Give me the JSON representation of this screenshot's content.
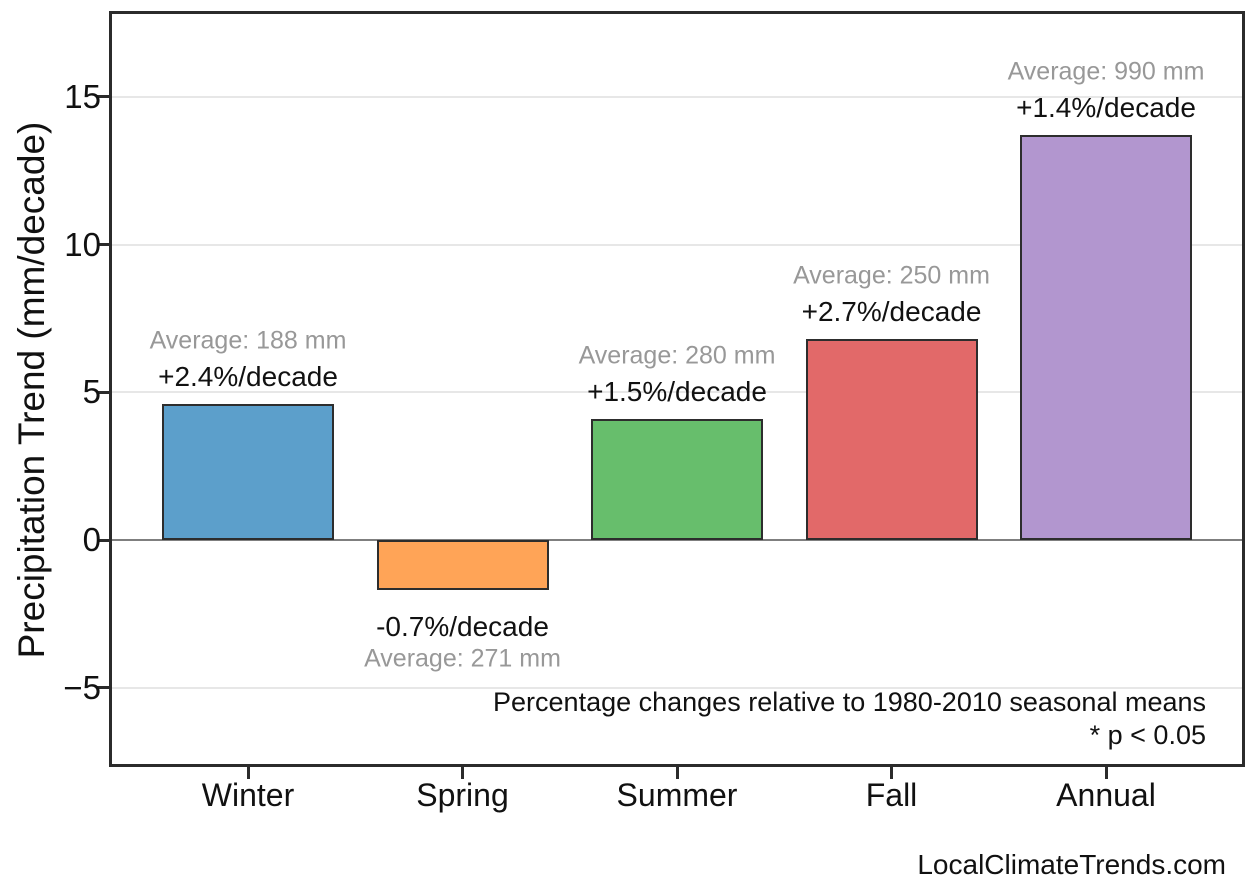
{
  "chart_data": {
    "type": "bar",
    "title": "",
    "xlabel": "",
    "ylabel": "Precipitation Trend (mm/decade)",
    "categories": [
      "Winter",
      "Spring",
      "Summer",
      "Fall",
      "Annual"
    ],
    "values": [
      4.6,
      -1.7,
      4.1,
      6.8,
      13.7
    ],
    "ylim": [
      -7.6,
      17.8
    ],
    "yticks": [
      -5,
      0,
      5,
      10,
      15
    ],
    "ytick_labels": [
      "−5",
      "0",
      "5",
      "10",
      "15"
    ],
    "grid": "horizontal",
    "legend": "none",
    "bars": [
      {
        "category": "Winter",
        "value": 4.6,
        "avg_mm": 188,
        "pct_per_decade": 2.4,
        "avg_label": "Average: 188 mm",
        "pct_label": "+2.4%/decade",
        "color": "#5C9FCB"
      },
      {
        "category": "Spring",
        "value": -1.7,
        "avg_mm": 271,
        "pct_per_decade": -0.7,
        "avg_label": "Average: 271 mm",
        "pct_label": "-0.7%/decade",
        "color": "#FFA457"
      },
      {
        "category": "Summer",
        "value": 4.1,
        "avg_mm": 280,
        "pct_per_decade": 1.5,
        "avg_label": "Average: 280 mm",
        "pct_label": "+1.5%/decade",
        "color": "#67BE6C"
      },
      {
        "category": "Fall",
        "value": 6.8,
        "avg_mm": 250,
        "pct_per_decade": 2.7,
        "avg_label": "Average: 250 mm",
        "pct_label": "+2.7%/decade",
        "color": "#E26969"
      },
      {
        "category": "Annual",
        "value": 13.7,
        "avg_mm": 990,
        "pct_per_decade": 1.4,
        "avg_label": "Average: 990 mm",
        "pct_label": "+1.4%/decade",
        "color": "#B296CF"
      }
    ]
  },
  "footnote": {
    "line1": "Percentage changes relative to 1980-2010 seasonal means",
    "line2": "* p < 0.05"
  },
  "watermark": "LocalClimateTrends.com",
  "colors": {
    "winter_bar": "#5C9FCB",
    "spring_bar": "#FFA457",
    "summer_bar": "#67BE6C",
    "fall_bar": "#E26969",
    "annual_bar": "#B296CF",
    "bar_edge": "#2d2d2d",
    "frame": "#2b2b2b",
    "gridline": "#e7e7e7",
    "zero_line": "#7f7f7f",
    "annotation_gray": "#989898",
    "text_black": "#111111"
  }
}
